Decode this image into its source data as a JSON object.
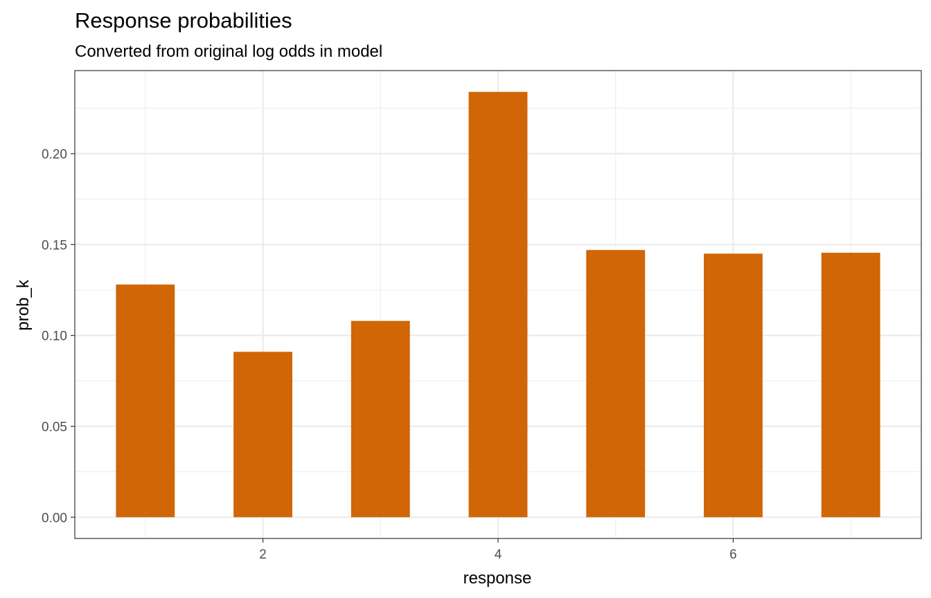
{
  "chart_data": {
    "type": "bar",
    "title": "Response probabilities",
    "subtitle": "Converted from original log odds in model",
    "xlabel": "response",
    "ylabel": "prob_k",
    "x": [
      1,
      2,
      3,
      4,
      5,
      6,
      7
    ],
    "values": [
      0.128,
      0.091,
      0.108,
      0.234,
      0.147,
      0.145,
      0.1455
    ],
    "xlim": [
      0.4,
      7.6
    ],
    "ylim": [
      -0.0117,
      0.2457
    ],
    "x_ticks": [
      2,
      4,
      6
    ],
    "x_tick_labels": [
      "2",
      "4",
      "6"
    ],
    "y_ticks": [
      0,
      0.05,
      0.1,
      0.15,
      0.2
    ],
    "y_tick_labels": [
      "0.00",
      "0.05",
      "0.10",
      "0.15",
      "0.20"
    ],
    "bar_width": 0.5,
    "bar_color": "#D06606",
    "grid": true,
    "legend": "none"
  }
}
